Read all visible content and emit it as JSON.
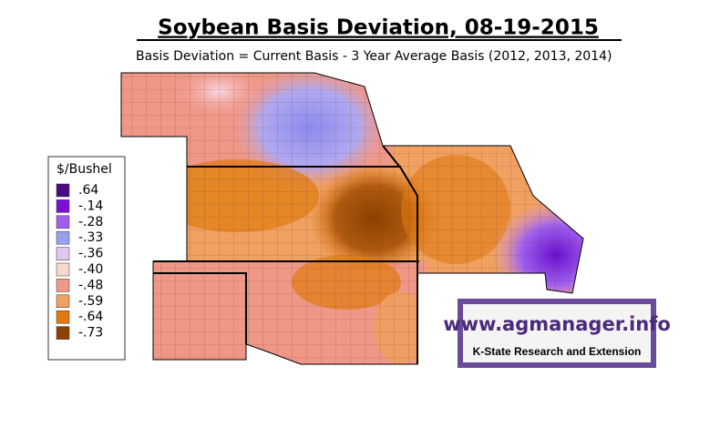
{
  "header": {
    "title": "Soybean Basis Deviation, 08-19-2015",
    "subtitle": "Basis Deviation = Current Basis - 3 Year Average Basis (2012, 2013, 2014)"
  },
  "legend": {
    "title": "$/Bushel",
    "items": [
      {
        "label": ".64",
        "color": "#4a0a80"
      },
      {
        "label": "-.14",
        "color": "#7a10d8"
      },
      {
        "label": "-.28",
        "color": "#a060ee"
      },
      {
        "label": "-.33",
        "color": "#9aa0f0"
      },
      {
        "label": "-.36",
        "color": "#e0c8f0"
      },
      {
        "label": "-.40",
        "color": "#f8d8c8"
      },
      {
        "label": "-.48",
        "color": "#f09888"
      },
      {
        "label": "-.59",
        "color": "#f0a060"
      },
      {
        "label": "-.64",
        "color": "#e07a10"
      },
      {
        "label": "-.73",
        "color": "#8a4200"
      }
    ]
  },
  "logo": {
    "url": "www.agmanager.info",
    "org": "K-State Research and Extension"
  }
}
